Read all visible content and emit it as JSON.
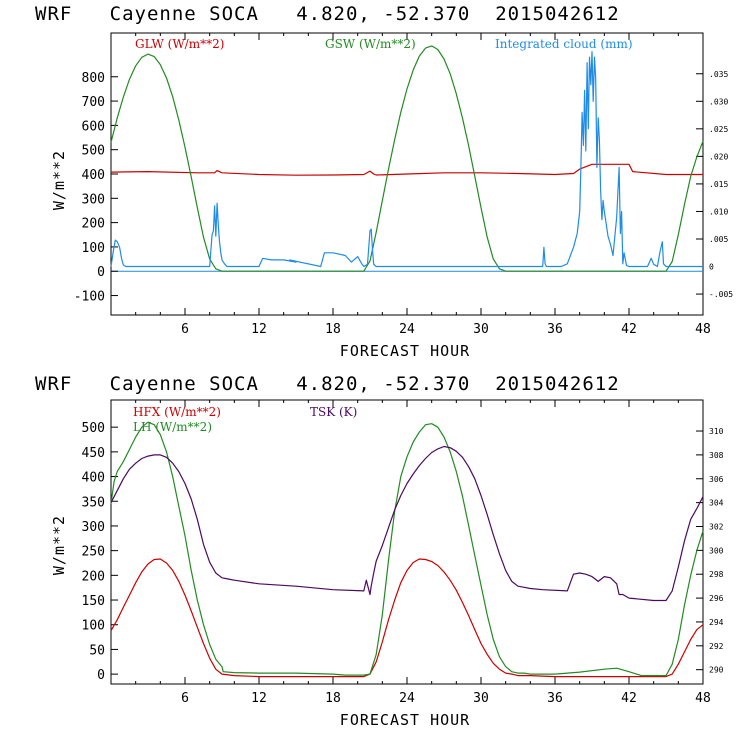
{
  "chart_data": [
    {
      "type": "line",
      "title": "WRF   Cayenne SOCA   4.820, -52.370  2015042612",
      "xlabel": "FORECAST HOUR",
      "ylabel": "W/m**2",
      "xlim": [
        0,
        48
      ],
      "ylim": [
        -180,
        980
      ],
      "x_ticks": [
        6,
        12,
        18,
        24,
        30,
        36,
        42,
        48
      ],
      "y_ticks": [
        -100,
        0,
        100,
        200,
        300,
        400,
        500,
        600,
        700,
        800
      ],
      "y_right_lim": [
        -0.0088,
        0.0424
      ],
      "y_right_ticks": [
        -0.005,
        0,
        0.005,
        0.01,
        0.015,
        0.02,
        0.025,
        0.03,
        0.035
      ],
      "y_right_tick_labels": [
        "-.005",
        "0",
        ".005",
        ".010",
        ".015",
        ".020",
        ".025",
        ".030",
        ".035"
      ],
      "zero_line": true,
      "series": [
        {
          "name": "GLW (W/m**2)",
          "color": "#cc0000",
          "axis": "left",
          "x": [
            0,
            3,
            7,
            8.4,
            8.6,
            9,
            12,
            15,
            18,
            20.5,
            21,
            21.3,
            21.5,
            24,
            27,
            30,
            33,
            36,
            37.5,
            38,
            39,
            42,
            42.3,
            45,
            48
          ],
          "y": [
            408,
            410,
            405,
            405,
            414,
            405,
            398,
            395,
            396,
            398,
            412,
            400,
            396,
            400,
            405,
            405,
            402,
            398,
            402,
            420,
            440,
            440,
            410,
            398,
            398
          ]
        },
        {
          "name": "GSW (W/m**2)",
          "color": "#228b22",
          "axis": "left",
          "x": [
            0,
            0.5,
            1,
            1.5,
            2,
            2.5,
            3,
            3.5,
            4,
            4.5,
            5,
            5.5,
            6,
            6.5,
            7,
            7.5,
            8,
            8.5,
            9,
            9.5,
            10,
            20.5,
            21,
            21.5,
            22,
            22.5,
            23,
            23.5,
            24,
            24.5,
            25,
            25.5,
            26,
            26.5,
            27,
            27.5,
            28,
            28.5,
            29,
            29.5,
            30,
            30.5,
            31,
            31.5,
            32,
            32.5,
            33,
            33.5,
            34,
            45,
            45.5,
            46,
            46.5,
            47,
            47.5,
            48
          ],
          "y": [
            530,
            630,
            716,
            790,
            845,
            880,
            893,
            883,
            850,
            795,
            718,
            622,
            510,
            388,
            262,
            140,
            50,
            10,
            0,
            0,
            0,
            0,
            42,
            160,
            290,
            420,
            542,
            654,
            750,
            828,
            885,
            918,
            927,
            912,
            873,
            812,
            730,
            630,
            515,
            390,
            262,
            140,
            50,
            10,
            0,
            0,
            0,
            0,
            0,
            0,
            40,
            150,
            275,
            390,
            470,
            535
          ]
        },
        {
          "name": "Integrated cloud (mm)",
          "color": "#1e8ce8",
          "axis": "right",
          "x": [
            0,
            0.2,
            0.35,
            0.5,
            0.7,
            0.85,
            1,
            1.2,
            8,
            8.1,
            8.2,
            8.3,
            8.4,
            8.5,
            8.6,
            8.7,
            8.8,
            8.9,
            9,
            9.2,
            9.4,
            10.5,
            12,
            12.3,
            13,
            14,
            15,
            14.5,
            17,
            17.3,
            18,
            19,
            19.5,
            20,
            20.3,
            20.5,
            20.8,
            21,
            21.1,
            21.2,
            21.3,
            21.5,
            35,
            35.1,
            35.2,
            35.3,
            36.5,
            37,
            37.5,
            37.8,
            38,
            38.1,
            38.2,
            38.3,
            38.4,
            38.5,
            38.6,
            38.7,
            38.8,
            38.9,
            39,
            39.1,
            39.2,
            39.3,
            39.4,
            39.5,
            39.6,
            39.7,
            39.8,
            39.9,
            40,
            40.1,
            40.2,
            40.3,
            40.5,
            40.7,
            41,
            41.2,
            41.3,
            41.4,
            41.5,
            41.6,
            41.8,
            42,
            43.5,
            43.8,
            44,
            44.3,
            44.5,
            44.7,
            44.8,
            45,
            48
          ],
          "y": [
            0,
            0.003,
            0.0048,
            0.0045,
            0.0035,
            0.0015,
            0.0003,
            0,
            0,
            0.003,
            0.0058,
            0.0065,
            0.011,
            0.0055,
            0.0115,
            0.0075,
            0.0045,
            0.0025,
            0.0012,
            0.0005,
            0,
            0,
            0,
            0.0015,
            0.0012,
            0.0012,
            0.0008,
            0.0012,
            0,
            0.0025,
            0.0025,
            0.002,
            0.0008,
            0.0018,
            0.0006,
            0,
            0.0004,
            0.0065,
            0.0068,
            0.003,
            0.0004,
            0,
            0,
            0.0035,
            0.0005,
            0,
            0,
            0.0005,
            0.0035,
            0.006,
            0.01,
            0.018,
            0.028,
            0.022,
            0.032,
            0.021,
            0.037,
            0.025,
            0.038,
            0.033,
            0.039,
            0.03,
            0.038,
            0.034,
            0.018,
            0.027,
            0.023,
            0.014,
            0.0085,
            0.012,
            0.01,
            0.0085,
            0.007,
            0.0055,
            0.004,
            0.002,
            0.009,
            0.018,
            0.006,
            0.01,
            0.0005,
            0.0025,
            0.0002,
            0,
            0,
            0.0015,
            0.0004,
            0,
            0.0025,
            0.0045,
            0.0005,
            0,
            0
          ]
        }
      ]
    },
    {
      "type": "line",
      "title": "WRF   Cayenne SOCA   4.820, -52.370  2015042612",
      "xlabel": "FORECAST HOUR",
      "ylabel": "W/m**2",
      "xlim": [
        0,
        48
      ],
      "ylim": [
        -20,
        555
      ],
      "x_ticks": [
        6,
        12,
        18,
        24,
        30,
        36,
        42,
        48
      ],
      "y_ticks": [
        0,
        50,
        100,
        150,
        200,
        250,
        300,
        350,
        400,
        450,
        500
      ],
      "y_right_lim": [
        288.8,
        312.6
      ],
      "y_right_ticks": [
        290,
        292,
        294,
        296,
        298,
        300,
        302,
        304,
        306,
        308,
        310
      ],
      "y_right_tick_labels": [
        "290",
        "292",
        "294",
        "296",
        "298",
        "300",
        "302",
        "304",
        "306",
        "308",
        "310"
      ],
      "zero_line": false,
      "series": [
        {
          "name": "HFX (W/m**2)",
          "color": "#cc0000",
          "axis": "left",
          "x": [
            0,
            0.5,
            1,
            1.5,
            2,
            2.5,
            3,
            3.5,
            4,
            4.5,
            5,
            5.5,
            6,
            6.5,
            7,
            7.5,
            8,
            8.5,
            9,
            10,
            12,
            15,
            18,
            20.5,
            21,
            21.5,
            22,
            22.5,
            23,
            23.5,
            24,
            24.5,
            25,
            25.5,
            26,
            26.5,
            27,
            27.5,
            28,
            28.5,
            29,
            29.5,
            30,
            30.5,
            31,
            31.5,
            32,
            32.5,
            33,
            33.5,
            34,
            36,
            40,
            45,
            45.5,
            46,
            46.5,
            47,
            47.5,
            48
          ],
          "y": [
            88,
            110,
            135,
            160,
            185,
            207,
            223,
            232,
            233,
            225,
            210,
            188,
            160,
            128,
            95,
            62,
            32,
            10,
            0,
            -3,
            -5,
            -5,
            -5,
            -5,
            0,
            25,
            65,
            110,
            150,
            185,
            210,
            226,
            233,
            232,
            228,
            220,
            207,
            190,
            170,
            145,
            118,
            90,
            62,
            40,
            22,
            10,
            2,
            0,
            -3,
            -3,
            -3,
            -5,
            -5,
            -5,
            0,
            20,
            45,
            70,
            90,
            100
          ]
        },
        {
          "name": "LH (W/m**2)",
          "color": "#228b22",
          "axis": "left",
          "x": [
            0,
            0.25,
            0.5,
            1,
            1.5,
            2,
            2.5,
            3,
            3.5,
            4,
            4.5,
            5,
            5.5,
            6,
            6.5,
            7,
            7.5,
            8,
            8.5,
            9,
            9.1,
            10,
            12,
            15,
            18,
            19,
            20,
            20.5,
            21,
            21.5,
            22,
            22.5,
            23,
            23.5,
            24,
            24.5,
            25,
            25.5,
            26,
            26.5,
            27,
            27.5,
            28,
            28.5,
            29,
            29.5,
            30,
            30.5,
            31,
            31.5,
            32,
            32.5,
            33,
            33.5,
            34,
            36,
            38,
            40,
            41,
            42,
            43,
            44,
            45,
            45.5,
            46,
            46.5,
            47,
            47.5,
            48
          ],
          "y": [
            345,
            390,
            410,
            430,
            455,
            480,
            500,
            510,
            505,
            485,
            450,
            400,
            340,
            280,
            210,
            150,
            100,
            60,
            30,
            15,
            5,
            3,
            2,
            2,
            0,
            -2,
            -2,
            -2,
            0,
            40,
            120,
            230,
            330,
            400,
            440,
            470,
            490,
            505,
            507,
            500,
            480,
            450,
            410,
            360,
            300,
            240,
            180,
            120,
            70,
            35,
            15,
            5,
            2,
            2,
            0,
            0,
            4,
            10,
            12,
            5,
            -3,
            -3,
            -3,
            20,
            70,
            140,
            200,
            250,
            290
          ]
        },
        {
          "name": "TSK (K)",
          "color": "#4b0a5e",
          "axis": "right",
          "x": [
            0,
            0.5,
            1,
            1.5,
            2,
            2.5,
            3,
            3.5,
            4,
            4.5,
            5,
            5.5,
            6,
            6.5,
            7,
            7.5,
            8,
            8.5,
            9,
            9.5,
            10,
            12,
            15,
            18,
            20.5,
            20.7,
            21,
            21.1,
            21.3,
            21.5,
            22,
            22.5,
            23,
            23.5,
            24,
            24.5,
            25,
            25.5,
            26,
            26.5,
            27,
            27.5,
            28,
            28.5,
            29,
            29.5,
            30,
            30.5,
            31,
            31.5,
            32,
            32.5,
            33,
            33.5,
            34,
            35,
            37,
            37.5,
            38,
            38.5,
            39,
            39.5,
            40,
            40.5,
            41,
            41.2,
            41.5,
            42,
            44,
            45,
            45.5,
            46,
            46.5,
            47,
            47.5,
            48
          ],
          "y": [
            304,
            305,
            306,
            306.8,
            307.3,
            307.7,
            307.9,
            308,
            308,
            307.8,
            307.3,
            306.6,
            305.6,
            304.3,
            302.6,
            300.5,
            299,
            298.1,
            297.7,
            297.6,
            297.5,
            297.2,
            297,
            296.7,
            296.6,
            297.5,
            296.3,
            297,
            298.1,
            299.1,
            300.4,
            301.9,
            303.4,
            304.6,
            305.6,
            306.4,
            307.1,
            307.7,
            308.2,
            308.5,
            308.7,
            308.6,
            308.3,
            307.8,
            307,
            306,
            304.6,
            303,
            301.3,
            299.7,
            298.3,
            297.4,
            297,
            296.9,
            296.8,
            296.7,
            296.6,
            298,
            298.1,
            298,
            297.8,
            297.4,
            297.8,
            297.7,
            297.2,
            296.3,
            296.3,
            296,
            295.8,
            295.8,
            296.6,
            298.6,
            300.8,
            302.6,
            303.5,
            304.5
          ]
        }
      ]
    }
  ]
}
